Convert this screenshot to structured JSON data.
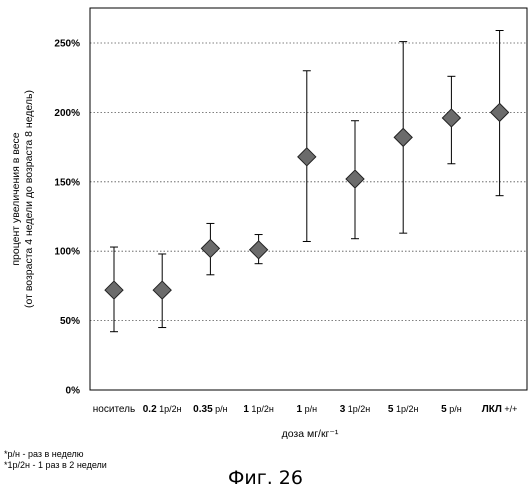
{
  "chart_data": {
    "type": "scatter",
    "title": "",
    "xlabel": "доза мг/кг⁻¹",
    "ylabel": "процент увеличения в весе",
    "ylabel_line2": "(от возраста 4 недели до возраста 8 недель)",
    "ylim": [
      0,
      260
    ],
    "yticks": [
      0,
      50,
      100,
      150,
      200,
      250
    ],
    "ytick_labels": [
      "0%",
      "50%",
      "100%",
      "150%",
      "200%",
      "250%"
    ],
    "grid": "horizontal dotted",
    "marker": "diamond",
    "categories": [
      {
        "value": "носитель",
        "unit": ""
      },
      {
        "value": "0.2",
        "unit": "1р/2н"
      },
      {
        "value": "0.35",
        "unit": "р/н"
      },
      {
        "value": "1",
        "unit": "1р/2н"
      },
      {
        "value": "1",
        "unit": "р/н"
      },
      {
        "value": "3",
        "unit": "1р/2н"
      },
      {
        "value": "5",
        "unit": "1р/2н"
      },
      {
        "value": "5",
        "unit": "р/н"
      },
      {
        "value": "ЛКЛ",
        "unit": "+/+"
      }
    ],
    "series": [
      {
        "means": [
          72,
          72,
          102,
          101,
          168,
          152,
          182,
          196,
          200
        ],
        "lower": [
          42,
          45,
          83,
          91,
          107,
          109,
          113,
          163,
          140
        ],
        "upper": [
          103,
          98,
          120,
          112,
          230,
          194,
          251,
          226,
          259
        ]
      }
    ]
  },
  "notes": [
    "*р/н - раз в неделю",
    "*1р/2н - 1 раз в 2 недели"
  ],
  "caption": "Фиг. 26"
}
